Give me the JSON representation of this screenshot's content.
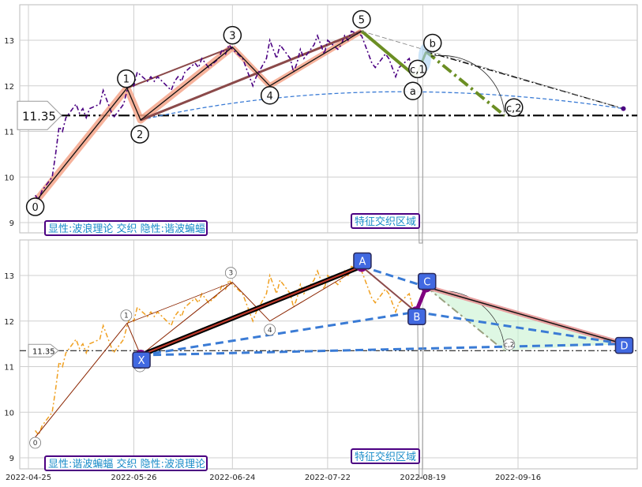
{
  "chart_data": [
    {
      "type": "line",
      "panel": "top",
      "ylim": [
        8.8,
        13.8
      ],
      "yticks": [
        9,
        10,
        11,
        12,
        13
      ],
      "grid": true,
      "price_level": 11.35,
      "price_level_label": "11.35",
      "bottom_label": "显性:波浪理论 交织 隐性:谐波蝙蝠",
      "zone_label": "特征交织区域",
      "price_series": [
        [
          "2022-04-27",
          9.6
        ],
        [
          "2022-04-28",
          9.5
        ],
        [
          "2022-04-29",
          9.7
        ],
        [
          "2022-05-02",
          10.0
        ],
        [
          "2022-05-03",
          10.5
        ],
        [
          "2022-05-04",
          11.1
        ],
        [
          "2022-05-05",
          11.0
        ],
        [
          "2022-05-06",
          11.3
        ],
        [
          "2022-05-09",
          11.6
        ],
        [
          "2022-05-10",
          11.4
        ],
        [
          "2022-05-11",
          11.5
        ],
        [
          "2022-05-12",
          11.3
        ],
        [
          "2022-05-13",
          11.5
        ],
        [
          "2022-05-16",
          11.6
        ],
        [
          "2022-05-17",
          11.9
        ],
        [
          "2022-05-18",
          11.7
        ],
        [
          "2022-05-19",
          11.5
        ],
        [
          "2022-05-20",
          11.3
        ],
        [
          "2022-05-23",
          11.6
        ],
        [
          "2022-05-24",
          11.9
        ],
        [
          "2022-05-25",
          12.1
        ],
        [
          "2022-05-26",
          12.0
        ],
        [
          "2022-05-27",
          12.3
        ],
        [
          "2022-05-30",
          12.1
        ],
        [
          "2022-05-31",
          12.2
        ],
        [
          "2022-06-01",
          12.1
        ],
        [
          "2022-06-02",
          12.2
        ],
        [
          "2022-06-06",
          11.9
        ],
        [
          "2022-06-07",
          12.1
        ],
        [
          "2022-06-08",
          12.2
        ],
        [
          "2022-06-09",
          12.1
        ],
        [
          "2022-06-10",
          12.3
        ],
        [
          "2022-06-13",
          12.5
        ],
        [
          "2022-06-14",
          12.4
        ],
        [
          "2022-06-15",
          12.6
        ],
        [
          "2022-06-16",
          12.5
        ],
        [
          "2022-06-17",
          12.4
        ],
        [
          "2022-06-20",
          12.6
        ],
        [
          "2022-06-21",
          12.8
        ],
        [
          "2022-06-22",
          12.7
        ],
        [
          "2022-06-23",
          12.9
        ],
        [
          "2022-06-24",
          12.8
        ],
        [
          "2022-06-27",
          12.6
        ],
        [
          "2022-06-28",
          12.4
        ],
        [
          "2022-06-29",
          12.2
        ],
        [
          "2022-06-30",
          12.0
        ],
        [
          "2022-07-01",
          12.2
        ],
        [
          "2022-07-04",
          12.6
        ],
        [
          "2022-07-05",
          13.0
        ],
        [
          "2022-07-06",
          12.8
        ],
        [
          "2022-07-07",
          12.6
        ],
        [
          "2022-07-08",
          12.9
        ],
        [
          "2022-07-11",
          12.6
        ],
        [
          "2022-07-12",
          12.3
        ],
        [
          "2022-07-13",
          12.5
        ],
        [
          "2022-07-14",
          12.8
        ],
        [
          "2022-07-15",
          12.6
        ],
        [
          "2022-07-18",
          12.9
        ],
        [
          "2022-07-19",
          13.1
        ],
        [
          "2022-07-20",
          12.9
        ],
        [
          "2022-07-21",
          12.7
        ],
        [
          "2022-07-22",
          13.0
        ],
        [
          "2022-07-25",
          12.8
        ],
        [
          "2022-07-26",
          12.9
        ],
        [
          "2022-07-27",
          13.1
        ],
        [
          "2022-07-28",
          13.0
        ],
        [
          "2022-07-29",
          13.2
        ],
        [
          "2022-08-01",
          13.1
        ],
        [
          "2022-08-02",
          12.9
        ],
        [
          "2022-08-03",
          12.7
        ],
        [
          "2022-08-04",
          12.5
        ],
        [
          "2022-08-05",
          12.4
        ],
        [
          "2022-08-08",
          12.7
        ],
        [
          "2022-08-09",
          12.6
        ],
        [
          "2022-08-10",
          12.4
        ],
        [
          "2022-08-11",
          12.2
        ],
        [
          "2022-08-12",
          12.4
        ],
        [
          "2022-08-15",
          12.6
        ],
        [
          "2022-08-16",
          12.3
        ],
        [
          "2022-08-17",
          12.2
        ]
      ],
      "wave_points": [
        {
          "label": "0",
          "date": "2022-04-27",
          "value": 9.45
        },
        {
          "label": "1",
          "date": "2022-05-24",
          "value": 11.95
        },
        {
          "label": "2",
          "date": "2022-05-28",
          "value": 11.25
        },
        {
          "label": "3",
          "date": "2022-06-24",
          "value": 12.85
        },
        {
          "label": "4",
          "date": "2022-07-05",
          "value": 12.0
        },
        {
          "label": "5",
          "date": "2022-08-01",
          "value": 13.2
        },
        {
          "label": "a",
          "date": "2022-08-17",
          "value": 12.2
        },
        {
          "label": "b",
          "date": "2022-08-20",
          "value": 12.75
        },
        {
          "label": "c,1",
          "date": "2022-08-17",
          "value": 12.3
        },
        {
          "label": "c,2",
          "date": "2022-09-12",
          "value": 11.35
        }
      ],
      "end_point": {
        "date": "2022-10-17",
        "value": 11.5
      }
    },
    {
      "type": "line",
      "panel": "bottom",
      "ylim": [
        8.8,
        13.8
      ],
      "yticks": [
        9,
        10,
        11,
        12,
        13
      ],
      "xticks": [
        "2022-04-25",
        "2022-05-26",
        "2022-06-24",
        "2022-07-22",
        "2022-08-19",
        "2022-09-16"
      ],
      "grid": true,
      "price_level": 11.35,
      "price_level_label": "11.35",
      "bottom_label": "显性:谐波蝙蝠 交织 隐性:波浪理论",
      "zone_label": "特征交织区域",
      "harmonic_points": [
        {
          "label": "X",
          "date": "2022-05-28",
          "value": 11.25
        },
        {
          "label": "A",
          "date": "2022-08-01",
          "value": 13.2
        },
        {
          "label": "B",
          "date": "2022-08-17",
          "value": 12.2
        },
        {
          "label": "C",
          "date": "2022-08-20",
          "value": 12.75
        },
        {
          "label": "D",
          "date": "2022-10-17",
          "value": 11.5
        }
      ],
      "wave_points": [
        {
          "label": "0",
          "date": "2022-04-27",
          "value": 9.45
        },
        {
          "label": "1",
          "date": "2022-05-24",
          "value": 11.95
        },
        {
          "label": "2",
          "date": "2022-05-28",
          "value": 11.25
        },
        {
          "label": "3",
          "date": "2022-06-24",
          "value": 12.85
        },
        {
          "label": "4",
          "date": "2022-07-05",
          "value": 12.0
        },
        {
          "label": "c,2",
          "date": "2022-09-12",
          "value": 11.35
        }
      ]
    }
  ],
  "colors": {
    "price_top": "#4b0082",
    "price_bottom": "#f0a020",
    "wave_fill": "#f4a58a",
    "wave_line_dark": "#8b4a4a",
    "green": "#6b8e23",
    "blue_dash": "#3a7bd5",
    "harmonic_node": "#4169e1",
    "purple": "#800080",
    "label_border": "#4b0082",
    "label_text": "#1a8cc9"
  }
}
